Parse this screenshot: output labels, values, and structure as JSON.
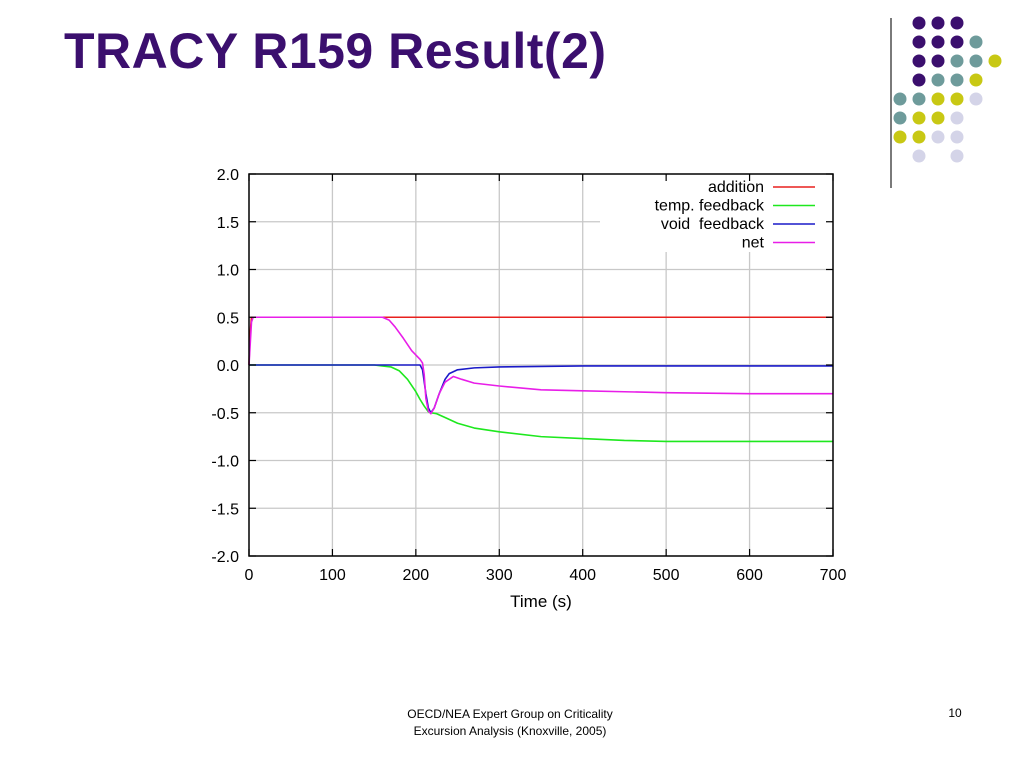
{
  "slide": {
    "title": "TRACY R159 Result(2)",
    "footer_line1": "OECD/NEA Expert Group on Criticality",
    "footer_line2": "Excursion Analysis (Knoxville, 2005)",
    "page_number": "10"
  },
  "decor": {
    "dot_colors": {
      "purple": "#3b0f6e",
      "teal": "#6e9b9b",
      "olive": "#c8c814",
      "lavender": "#d4d4e8"
    },
    "dot_rows": [
      [
        "",
        "purple",
        "purple",
        "purple",
        ""
      ],
      [
        "",
        "purple",
        "purple",
        "purple",
        "teal"
      ],
      [
        "",
        "purple",
        "purple",
        "teal",
        "teal",
        "olive"
      ],
      [
        "",
        "purple",
        "teal",
        "teal",
        "olive"
      ],
      [
        "teal",
        "teal",
        "olive",
        "olive",
        "lavender"
      ],
      [
        "teal",
        "olive",
        "olive",
        "lavender"
      ],
      [
        "olive",
        "olive",
        "lavender",
        "lavender"
      ],
      [
        "",
        "lavender",
        "",
        "lavender"
      ]
    ]
  },
  "chart_data": {
    "type": "line",
    "xlabel": "Time (s)",
    "ylabel": "",
    "xlim": [
      0,
      700
    ],
    "ylim": [
      -2.0,
      2.0
    ],
    "x_ticks": [
      "0",
      "100",
      "200",
      "300",
      "400",
      "500",
      "600",
      "700"
    ],
    "y_ticks": [
      "2.0",
      "1.5",
      "1.0",
      "0.5",
      "0.0",
      "-0.5",
      "-1.0",
      "-1.5",
      "-2.0"
    ],
    "grid": true,
    "legend_position": "top-right",
    "series": [
      {
        "name": "addition",
        "color": "#e8201e",
        "x": [
          0,
          1,
          3,
          5,
          700
        ],
        "y": [
          0,
          0.3,
          0.5,
          0.5,
          0.5
        ]
      },
      {
        "name": "temp. feedback",
        "color": "#1ee81e",
        "x": [
          0,
          150,
          170,
          180,
          190,
          200,
          205,
          210,
          215,
          218,
          225,
          235,
          250,
          270,
          300,
          350,
          400,
          450,
          500,
          600,
          700
        ],
        "y": [
          0,
          0,
          -0.02,
          -0.06,
          -0.15,
          -0.28,
          -0.36,
          -0.43,
          -0.49,
          -0.5,
          -0.51,
          -0.55,
          -0.61,
          -0.66,
          -0.7,
          -0.75,
          -0.77,
          -0.79,
          -0.8,
          -0.8,
          -0.8
        ]
      },
      {
        "name": "void  feedback",
        "color": "#1a1ac8",
        "x": [
          0,
          205,
          208,
          212,
          215,
          218,
          222,
          228,
          235,
          240,
          250,
          270,
          300,
          400,
          700
        ],
        "y": [
          0,
          0,
          -0.05,
          -0.3,
          -0.45,
          -0.5,
          -0.45,
          -0.3,
          -0.15,
          -0.09,
          -0.05,
          -0.03,
          -0.02,
          -0.01,
          -0.01
        ]
      },
      {
        "name": "net",
        "color": "#e81ee8",
        "x": [
          0,
          3,
          5,
          160,
          168,
          175,
          185,
          195,
          205,
          208,
          210,
          212,
          215,
          218,
          222,
          228,
          235,
          245,
          255,
          270,
          300,
          350,
          400,
          450,
          500,
          600,
          700
        ],
        "y": [
          0,
          0.45,
          0.5,
          0.5,
          0.47,
          0.4,
          0.28,
          0.15,
          0.06,
          0.02,
          -0.1,
          -0.35,
          -0.48,
          -0.51,
          -0.45,
          -0.3,
          -0.18,
          -0.12,
          -0.15,
          -0.19,
          -0.22,
          -0.26,
          -0.27,
          -0.28,
          -0.29,
          -0.3,
          -0.3
        ]
      }
    ]
  }
}
